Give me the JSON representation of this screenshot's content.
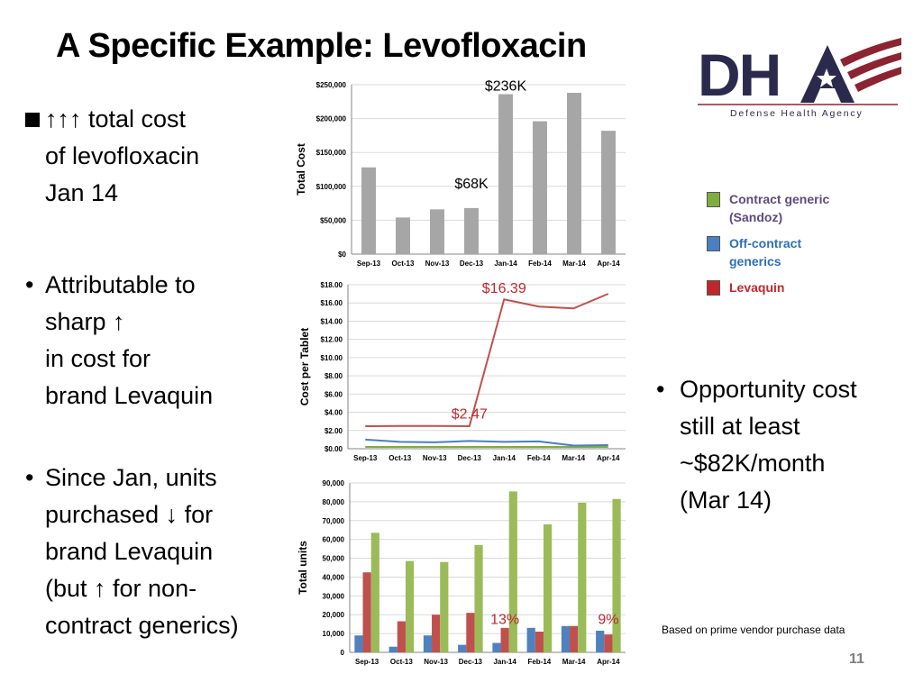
{
  "slide": {
    "title": "A Specific Example: Levofloxacin",
    "page_number": "11",
    "footnote": "Based on prime vendor purchase data"
  },
  "logo": {
    "text": "DHA",
    "subtitle": "Defense Health Agency",
    "colors": {
      "navy": "#2b2a4c",
      "red": "#8b2331"
    }
  },
  "left_bullets": [
    {
      "marker": "square",
      "lines": [
        "↑↑↑ total cost",
        "of levofloxacin",
        "Jan 14"
      ]
    },
    {
      "marker": "•",
      "lines": [
        "Attributable to",
        "sharp ↑",
        "in cost for",
        "brand Levaquin"
      ]
    },
    {
      "marker": "•",
      "lines": [
        "Since Jan, units",
        "purchased ↓ for",
        "brand Levaquin",
        "(but ↑ for non-",
        "contract generics)"
      ]
    }
  ],
  "right_bullets": [
    {
      "marker": "•",
      "lines": [
        "Opportunity cost",
        "still at least",
        "~$82K/month",
        "(Mar 14)"
      ]
    }
  ],
  "legend": [
    {
      "lines": [
        "Contract generic",
        "(Sandoz)"
      ],
      "color": "#7fae3c",
      "text_color": "#5c4a7d"
    },
    {
      "lines": [
        "Off-contract",
        "generics"
      ],
      "color": "#4a7fc1",
      "text_color": "#2f6fb6"
    },
    {
      "lines": [
        "Levaquin"
      ],
      "color": "#c0272d",
      "text_color": "#c0272d"
    }
  ],
  "chart_data": [
    {
      "type": "bar",
      "title": "",
      "xlabel": "",
      "ylabel": "Total Cost",
      "categories": [
        "Sep-13",
        "Oct-13",
        "Nov-13",
        "Dec-13",
        "Jan-14",
        "Feb-14",
        "Mar-14",
        "Apr-14"
      ],
      "series": [
        {
          "values": [
            128000,
            54000,
            66000,
            68000,
            236000,
            196000,
            238000,
            182000
          ],
          "color": "#a6a6a6"
        }
      ],
      "ylim": [
        0,
        250000
      ],
      "yticks": [
        0,
        50000,
        100000,
        150000,
        200000,
        250000
      ],
      "yticklabels": [
        "$0",
        "$50,000",
        "$100,000",
        "$150,000",
        "$200,000",
        "$250,000"
      ],
      "annotations": [
        {
          "text": "$236K",
          "x": "Jan-14",
          "y": 248000
        },
        {
          "text": "$68K",
          "x": "Dec-13",
          "y": 104000
        }
      ],
      "grid": true
    },
    {
      "type": "line",
      "title": "",
      "xlabel": "",
      "ylabel": "Cost per Tablet",
      "categories": [
        "Sep-13",
        "Oct-13",
        "Nov-13",
        "Dec-13",
        "Jan-14",
        "Feb-14",
        "Mar-14",
        "Apr-14"
      ],
      "series": [
        {
          "values": [
            0.2,
            0.2,
            0.2,
            0.2,
            0.2,
            0.2,
            0.2,
            0.2
          ],
          "color": "#7fae3c"
        },
        {
          "values": [
            1.0,
            0.75,
            0.7,
            0.85,
            0.75,
            0.8,
            0.35,
            0.4
          ],
          "color": "#4a7fc1"
        },
        {
          "values": [
            2.47,
            2.5,
            2.5,
            2.47,
            16.39,
            15.6,
            15.4,
            17.0
          ],
          "color": "#c0504d"
        }
      ],
      "ylim": [
        0,
        18
      ],
      "yticks": [
        0,
        2,
        4,
        6,
        8,
        10,
        12,
        14,
        16,
        18
      ],
      "yticklabels": [
        "$0.00",
        "$2.00",
        "$4.00",
        "$6.00",
        "$8.00",
        "$10.00",
        "$12.00",
        "$14.00",
        "$16.00",
        "$18.00"
      ],
      "annotations": [
        {
          "text": "$16.39",
          "x": "Jan-14",
          "y": 17.6,
          "color": "#c0272d"
        },
        {
          "text": "$2.47",
          "x": "Dec-13",
          "y": 3.8,
          "color": "#c0272d"
        }
      ],
      "grid": true
    },
    {
      "type": "bar",
      "title": "",
      "xlabel": "",
      "ylabel": "Total units",
      "categories": [
        "Sep-13",
        "Oct-13",
        "Nov-13",
        "Dec-13",
        "Jan-14",
        "Feb-14",
        "Mar-14",
        "Apr-14"
      ],
      "series": [
        {
          "values": [
            9000,
            3000,
            9000,
            4000,
            5000,
            13000,
            14000,
            11500
          ],
          "color": "#4f81bd"
        },
        {
          "values": [
            42500,
            16500,
            20000,
            21000,
            13000,
            11000,
            14000,
            9500
          ],
          "color": "#c0504d"
        },
        {
          "values": [
            63500,
            48500,
            48000,
            57000,
            85500,
            68000,
            79500,
            81500
          ],
          "color": "#9bbb59"
        }
      ],
      "ylim": [
        0,
        90000
      ],
      "yticks": [
        0,
        10000,
        20000,
        30000,
        40000,
        50000,
        60000,
        70000,
        80000,
        90000
      ],
      "yticklabels": [
        "0",
        "10,000",
        "20,000",
        "30,000",
        "40,000",
        "50,000",
        "60,000",
        "70,000",
        "80,000",
        "90,000"
      ],
      "annotations": [
        {
          "text": "13%",
          "x": "Jan-14",
          "y": 17500,
          "color": "#c0272d"
        },
        {
          "text": "9%",
          "x": "Apr-14",
          "y": 17500,
          "color": "#c0272d"
        }
      ],
      "grid": true
    }
  ]
}
